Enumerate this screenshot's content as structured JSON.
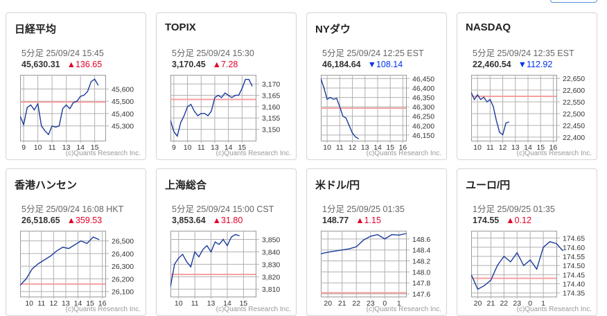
{
  "cards": [
    {
      "title": "日経平均",
      "timestamp": "5分足 25/09/24 15:45",
      "price": "45,630.31",
      "change": "▲136.65",
      "dir": "up",
      "credit": "(c)Quants Research Inc."
    },
    {
      "title": "TOPIX",
      "timestamp": "5分足 25/09/24 15:30",
      "price": "3,170.45",
      "change": "▲7.28",
      "dir": "up",
      "credit": "(c)Quants Research Inc."
    },
    {
      "title": "NYダウ",
      "timestamp": "5分足 25/09/24 12:25 EST",
      "price": "46,184.64",
      "change": "▼108.14",
      "dir": "down",
      "credit": "(c)Quants Research Inc."
    },
    {
      "title": "NASDAQ",
      "timestamp": "5分足 25/09/24 12:35 EST",
      "price": "22,460.54",
      "change": "▼112.92",
      "dir": "down",
      "credit": "(c)Quants Research Inc."
    },
    {
      "title": "香港ハンセン",
      "timestamp": "5分足 25/09/24 16:08 HKT",
      "price": "26,518.65",
      "change": "▲359.53",
      "dir": "up",
      "credit": "(c)Quants Research Inc."
    },
    {
      "title": "上海総合",
      "timestamp": "5分足 25/09/24 15:00 CST",
      "price": "3,853.64",
      "change": "▲31.80",
      "dir": "up",
      "credit": "(c)Quants Research Inc."
    },
    {
      "title": "米ドル/円",
      "timestamp": "1分足 25/09/25 01:35",
      "price": "148.77",
      "change": "▲1.15",
      "dir": "up",
      "credit": "(c)Quants Research Inc."
    },
    {
      "title": "ユーロ/円",
      "timestamp": "1分足 25/09/25 01:35",
      "price": "174.55",
      "change": "▲0.12",
      "dir": "up",
      "credit": "(c)Quants Research Inc."
    }
  ],
  "colors": {
    "up": "#e0002a",
    "down": "#0033ee",
    "line": "#1a3a9a",
    "ref": "#f4a0a0"
  },
  "chart_data": [
    {
      "type": "line",
      "ylim": [
        45180,
        45715
      ],
      "ref": 45493.66,
      "yticks": [
        45300,
        45400,
        45500,
        45600
      ],
      "ylabels": [
        "45,300",
        "45,400",
        "45,500",
        "45,600"
      ],
      "xspan": 25,
      "xticks": [
        {
          "label": "9",
          "i": 1
        },
        {
          "label": "10",
          "i": 5
        },
        {
          "label": "11",
          "i": 9
        },
        {
          "label": "13",
          "i": 13
        },
        {
          "label": "14",
          "i": 17
        },
        {
          "label": "15",
          "i": 21
        }
      ],
      "values": [
        45380,
        45310,
        45450,
        45470,
        45430,
        45480,
        45300,
        45260,
        45230,
        45300,
        45290,
        45300,
        45440,
        45470,
        45440,
        45490,
        45500,
        45540,
        45550,
        45580,
        45660,
        45680,
        45630
      ]
    },
    {
      "type": "line",
      "ylim": [
        3145,
        3174
      ],
      "ref": 3163.17,
      "yticks": [
        3150,
        3155,
        3160,
        3165,
        3170
      ],
      "ylabels": [
        "3,150",
        "3,155",
        "3,160",
        "3,165",
        "3,170"
      ],
      "xspan": 26,
      "xticks": [
        {
          "label": "9",
          "i": 1
        },
        {
          "label": "10",
          "i": 5
        },
        {
          "label": "11",
          "i": 9
        },
        {
          "label": "13",
          "i": 13
        },
        {
          "label": "14",
          "i": 17
        },
        {
          "label": "15",
          "i": 21
        }
      ],
      "values": [
        3154,
        3149,
        3147,
        3153,
        3156,
        3160,
        3161,
        3158,
        3156,
        3157,
        3157,
        3156,
        3158,
        3164,
        3165,
        3164,
        3166,
        3165,
        3164,
        3165,
        3165,
        3168,
        3172,
        3172,
        3169
      ]
    },
    {
      "type": "line",
      "ylim": [
        46120,
        46470
      ],
      "ref": 46292.78,
      "yticks": [
        46150,
        46200,
        46250,
        46300,
        46350,
        46400,
        46450
      ],
      "ylabels": [
        "46,150",
        "46,200",
        "46,250",
        "46,300",
        "46,350",
        "46,400",
        "46,450"
      ],
      "xspan": 28,
      "xticks": [
        {
          "label": "10",
          "i": 2
        },
        {
          "label": "11",
          "i": 6
        },
        {
          "label": "12",
          "i": 10
        },
        {
          "label": "13",
          "i": 14
        },
        {
          "label": "14",
          "i": 18
        },
        {
          "label": "15",
          "i": 22
        },
        {
          "label": "16",
          "i": 26
        }
      ],
      "values": [
        46450,
        46400,
        46340,
        46350,
        46340,
        46345,
        46300,
        46250,
        46240,
        46200,
        46160,
        46140,
        46130
      ]
    },
    {
      "type": "line",
      "ylim": [
        22385,
        22665
      ],
      "ref": 22573.46,
      "yticks": [
        22400,
        22450,
        22500,
        22550,
        22600,
        22650
      ],
      "ylabels": [
        "22,400",
        "22,450",
        "22,500",
        "22,550",
        "22,600",
        "22,650"
      ],
      "xspan": 28,
      "xticks": [
        {
          "label": "10",
          "i": 2
        },
        {
          "label": "11",
          "i": 6
        },
        {
          "label": "12",
          "i": 10
        },
        {
          "label": "13",
          "i": 14
        },
        {
          "label": "14",
          "i": 18
        },
        {
          "label": "15",
          "i": 22
        },
        {
          "label": "16",
          "i": 26
        }
      ],
      "values": [
        22590,
        22560,
        22580,
        22560,
        22570,
        22550,
        22560,
        22530,
        22470,
        22420,
        22410,
        22460,
        22465
      ]
    },
    {
      "type": "line",
      "ylim": [
        26060,
        26580
      ],
      "ref": 26159.12,
      "yticks": [
        26100,
        26200,
        26300,
        26400,
        26500
      ],
      "ylabels": [
        "26,100",
        "26,200",
        "26,300",
        "26,400",
        "26,500"
      ],
      "xspan": 15,
      "xticks": [
        {
          "label": "10",
          "i": 1.5
        },
        {
          "label": "11",
          "i": 3.5
        },
        {
          "label": "12",
          "i": 5.5
        },
        {
          "label": "13",
          "i": 7.5
        },
        {
          "label": "14",
          "i": 9.5
        },
        {
          "label": "15",
          "i": 11.5
        },
        {
          "label": "16",
          "i": 13.5
        }
      ],
      "values": [
        26150,
        26200,
        26280,
        26320,
        26350,
        26380,
        26420,
        26450,
        26440,
        26470,
        26500,
        26480,
        26530,
        26510
      ]
    },
    {
      "type": "line",
      "ylim": [
        3804,
        3857
      ],
      "ref": 3821.84,
      "yticks": [
        3810,
        3820,
        3830,
        3840,
        3850
      ],
      "ylabels": [
        "3,810",
        "3,820",
        "3,830",
        "3,840",
        "3,850"
      ],
      "xspan": 22,
      "xticks": [
        {
          "label": "10",
          "i": 2
        },
        {
          "label": "11",
          "i": 6
        },
        {
          "label": "13",
          "i": 10
        },
        {
          "label": "14",
          "i": 14
        },
        {
          "label": "15",
          "i": 18
        }
      ],
      "values": [
        3812,
        3830,
        3835,
        3838,
        3832,
        3828,
        3840,
        3836,
        3842,
        3845,
        3840,
        3848,
        3846,
        3850,
        3845,
        3852,
        3854,
        3853
      ]
    },
    {
      "type": "line",
      "ylim": [
        147.55,
        148.75
      ],
      "ref": 147.62,
      "yticks": [
        147.6,
        147.8,
        148.0,
        148.2,
        148.4,
        148.6
      ],
      "ylabels": [
        "147.6",
        "147.8",
        "148.0",
        "148.2",
        "148.4",
        "148.6"
      ],
      "xspan": 13,
      "xticks": [
        {
          "label": "20",
          "i": 1
        },
        {
          "label": "21",
          "i": 3
        },
        {
          "label": "22",
          "i": 5
        },
        {
          "label": "23",
          "i": 7
        },
        {
          "label": "0",
          "i": 9
        },
        {
          "label": "1",
          "i": 11
        }
      ],
      "values": [
        148.33,
        148.36,
        148.38,
        148.4,
        148.42,
        148.46,
        148.58,
        148.65,
        148.68,
        148.6,
        148.68,
        148.67,
        148.7
      ]
    },
    {
      "type": "line",
      "ylim": [
        174.33,
        174.69
      ],
      "ref": 174.43,
      "yticks": [
        174.35,
        174.4,
        174.45,
        174.5,
        174.55,
        174.6,
        174.65
      ],
      "ylabels": [
        "174.35",
        "174.40",
        "174.45",
        "174.50",
        "174.55",
        "174.60",
        "174.65"
      ],
      "xspan": 14,
      "xticks": [
        {
          "label": "20",
          "i": 1
        },
        {
          "label": "21",
          "i": 3
        },
        {
          "label": "22",
          "i": 5
        },
        {
          "label": "23",
          "i": 7
        },
        {
          "label": "0",
          "i": 9
        },
        {
          "label": "1",
          "i": 11
        }
      ],
      "values": [
        174.45,
        174.37,
        174.39,
        174.42,
        174.5,
        174.55,
        174.52,
        174.57,
        174.5,
        174.53,
        174.48,
        174.6,
        174.63,
        174.62,
        174.58
      ]
    }
  ]
}
